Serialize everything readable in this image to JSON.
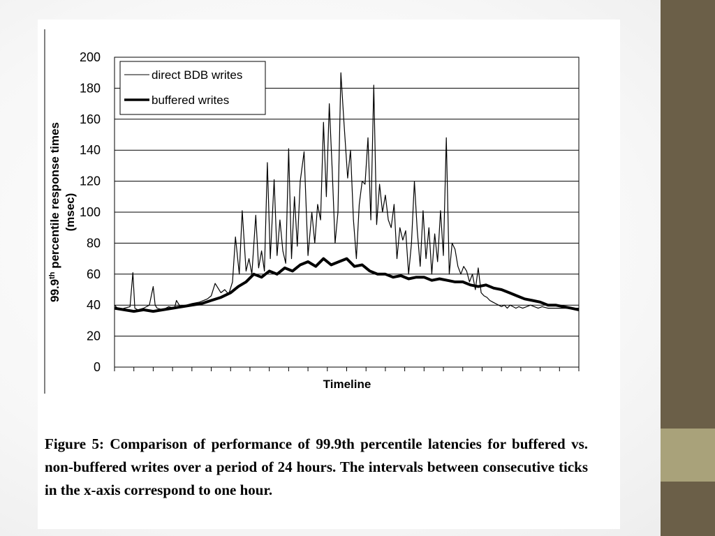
{
  "slide": {
    "panel_color": "#ffffff",
    "sidebar_color": "#6b5f48",
    "accent_color": "#a9a27a",
    "caption": "Figure 5: Comparison of performance of 99.9th percentile latencies for buffered vs. non-buffered writes over a period of 24 hours. The intervals between consecutive ticks in the x-axis correspond to one hour."
  },
  "chart_data": {
    "type": "line",
    "title": "",
    "xlabel": "Timeline",
    "ylabel": "99.9th percentile response times (msec)",
    "ylabel_parts": [
      "99.9",
      "th",
      " percentile response times"
    ],
    "ylabel_line2": "(msec)",
    "ylim": [
      0,
      200
    ],
    "yticks": [
      0,
      20,
      40,
      60,
      80,
      100,
      120,
      140,
      160,
      180,
      200
    ],
    "xlim": [
      0,
      24
    ],
    "xticks": [
      0,
      1,
      2,
      3,
      4,
      5,
      6,
      7,
      8,
      9,
      10,
      11,
      12,
      13,
      14,
      15,
      16,
      17,
      18,
      19,
      20,
      21,
      22,
      23,
      24
    ],
    "grid": "horizontal",
    "legend_position": "top-left",
    "series": [
      {
        "name": "direct BDB writes",
        "style": "thin",
        "color": "#000000",
        "x": [
          0,
          0.15,
          0.3,
          0.5,
          0.8,
          0.95,
          1.05,
          1.2,
          1.5,
          1.8,
          2.0,
          2.1,
          2.2,
          2.5,
          2.8,
          3.1,
          3.2,
          3.4,
          3.7,
          4.0,
          4.4,
          4.8,
          5.0,
          5.2,
          5.5,
          5.7,
          5.9,
          6.1,
          6.25,
          6.45,
          6.6,
          6.8,
          6.95,
          7.1,
          7.3,
          7.45,
          7.6,
          7.75,
          7.9,
          8.05,
          8.25,
          8.4,
          8.55,
          8.7,
          8.85,
          9.0,
          9.15,
          9.3,
          9.45,
          9.6,
          9.8,
          10.0,
          10.2,
          10.35,
          10.5,
          10.65,
          10.8,
          10.95,
          11.1,
          11.25,
          11.4,
          11.55,
          11.7,
          11.85,
          12.05,
          12.2,
          12.35,
          12.5,
          12.65,
          12.8,
          12.95,
          13.1,
          13.25,
          13.4,
          13.55,
          13.7,
          13.85,
          14.0,
          14.15,
          14.3,
          14.45,
          14.6,
          14.75,
          14.9,
          15.05,
          15.2,
          15.35,
          15.5,
          15.65,
          15.8,
          15.95,
          16.1,
          16.25,
          16.4,
          16.55,
          16.7,
          16.85,
          17.0,
          17.15,
          17.3,
          17.45,
          17.6,
          17.75,
          17.9,
          18.05,
          18.2,
          18.35,
          18.5,
          18.65,
          18.8,
          18.95,
          19.1,
          19.25,
          19.4,
          19.55,
          19.7,
          19.85,
          20.0,
          20.15,
          20.3,
          20.45,
          20.6,
          20.75,
          20.9,
          21.1,
          21.3,
          21.5,
          21.7,
          21.9,
          22.1,
          22.4,
          22.7,
          23.0,
          23.3,
          23.6,
          24.0
        ],
        "y": [
          40,
          38,
          37,
          38,
          39,
          61,
          38,
          37,
          38,
          40,
          52,
          40,
          38,
          37,
          39,
          38,
          43,
          39,
          40,
          41,
          42,
          44,
          46,
          54,
          48,
          50,
          47,
          55,
          84,
          60,
          101,
          62,
          70,
          60,
          98,
          64,
          75,
          62,
          132,
          70,
          121,
          72,
          95,
          75,
          67,
          141,
          70,
          110,
          78,
          120,
          139,
          72,
          100,
          80,
          105,
          95,
          158,
          110,
          170,
          128,
          80,
          100,
          190,
          160,
          122,
          140,
          95,
          70,
          105,
          120,
          118,
          148,
          95,
          182,
          92,
          118,
          100,
          111,
          95,
          90,
          105,
          70,
          90,
          82,
          88,
          60,
          80,
          120,
          88,
          65,
          101,
          70,
          90,
          60,
          86,
          68,
          101,
          72,
          148,
          60,
          80,
          76,
          65,
          60,
          65,
          62,
          55,
          60,
          50,
          64,
          48,
          46,
          45,
          43,
          42,
          41,
          40,
          39,
          40,
          38,
          40,
          39,
          38,
          39,
          38,
          39,
          40,
          39,
          38,
          39,
          38,
          38,
          38,
          38,
          38,
          38
        ]
      },
      {
        "name": "buffered writes",
        "style": "thick",
        "color": "#000000",
        "x": [
          0,
          0.5,
          1.0,
          1.5,
          2.0,
          2.5,
          3.0,
          3.5,
          4.0,
          4.5,
          5.0,
          5.5,
          6.0,
          6.4,
          6.8,
          7.2,
          7.6,
          8.0,
          8.4,
          8.8,
          9.2,
          9.6,
          10.0,
          10.4,
          10.8,
          11.2,
          11.6,
          12.0,
          12.4,
          12.8,
          13.2,
          13.6,
          14.0,
          14.4,
          14.8,
          15.2,
          15.6,
          16.0,
          16.4,
          16.8,
          17.2,
          17.6,
          18.0,
          18.4,
          18.8,
          19.2,
          19.6,
          20.0,
          20.4,
          20.8,
          21.2,
          21.6,
          22.0,
          22.4,
          22.8,
          23.2,
          23.6,
          24.0
        ],
        "y": [
          38,
          37,
          36,
          37,
          36,
          37,
          38,
          39,
          40,
          41,
          43,
          45,
          48,
          52,
          55,
          60,
          58,
          62,
          60,
          64,
          62,
          66,
          68,
          65,
          70,
          66,
          68,
          70,
          65,
          66,
          62,
          60,
          60,
          58,
          59,
          57,
          58,
          58,
          56,
          57,
          56,
          55,
          55,
          53,
          52,
          53,
          51,
          50,
          48,
          46,
          44,
          43,
          42,
          40,
          40,
          39,
          38,
          37
        ]
      }
    ]
  }
}
